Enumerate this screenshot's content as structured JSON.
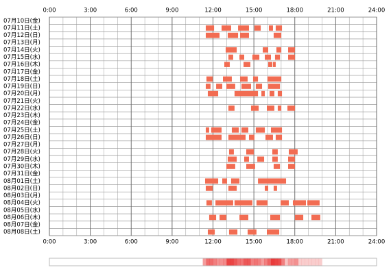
{
  "chart_data": {
    "type": "timeline",
    "categories": [
      "07月10日(金)",
      "07月11日(土)",
      "07月12日(日)",
      "07月13日(月)",
      "07月14日(火)",
      "07月15日(水)",
      "07月16日(木)",
      "07月17日(金)",
      "07月18日(土)",
      "07月19日(日)",
      "07月20日(月)",
      "07月21日(火)",
      "07月22日(水)",
      "07月23日(木)",
      "07月24日(金)",
      "07月25日(土)",
      "07月26日(日)",
      "07月27日(月)",
      "07月28日(火)",
      "07月29日(水)",
      "07月30日(木)",
      "07月31日(金)",
      "08月01日(土)",
      "08月02日(日)",
      "08月03日(月)",
      "08月04日(火)",
      "08月05日(水)",
      "08月06日(木)",
      "08月07日(金)",
      "08月08日(土)"
    ],
    "xlim": [
      0,
      24
    ],
    "xticks": [
      {
        "value": 0,
        "label": "0:00"
      },
      {
        "value": 3,
        "label": "3:00"
      },
      {
        "value": 6,
        "label": "6:00"
      },
      {
        "value": 9,
        "label": "9:00"
      },
      {
        "value": 12,
        "label": "12:00"
      },
      {
        "value": 15,
        "label": "15:00"
      },
      {
        "value": 18,
        "label": "18:00"
      },
      {
        "value": 21,
        "label": "21:00"
      },
      {
        "value": 24,
        "label": "24:00"
      }
    ],
    "color": "#f26c52",
    "values": [
      [],
      [
        [
          11.47,
          12.08
        ],
        [
          12.63,
          13.33
        ],
        [
          13.84,
          14.64
        ],
        [
          15.04,
          15.5
        ],
        [
          16.1,
          16.4
        ],
        [
          16.6,
          17.06
        ]
      ],
      [
        [
          11.47,
          12.48
        ],
        [
          13.08,
          13.84
        ],
        [
          13.99,
          14.64
        ],
        [
          16.45,
          17.01
        ]
      ],
      [],
      [
        [
          12.93,
          13.74
        ],
        [
          15.65,
          16.05
        ],
        [
          16.65,
          17.01
        ],
        [
          17.51,
          18.01
        ]
      ],
      [
        [
          13.13,
          13.48
        ],
        [
          13.94,
          14.29
        ],
        [
          14.89,
          15.4
        ],
        [
          15.8,
          16.25
        ],
        [
          16.55,
          16.91
        ],
        [
          17.51,
          18.01
        ]
      ],
      [
        [
          12.83,
          13.23
        ],
        [
          14.24,
          14.74
        ],
        [
          16.05,
          16.35
        ],
        [
          16.4,
          16.6
        ]
      ],
      [],
      [
        [
          11.52,
          11.97
        ],
        [
          12.73,
          13.38
        ],
        [
          13.99,
          14.54
        ],
        [
          14.94,
          15.3
        ],
        [
          16.0,
          17.01
        ]
      ],
      [
        [
          11.47,
          11.82
        ],
        [
          12.23,
          12.68
        ],
        [
          12.98,
          13.63
        ],
        [
          14.09,
          14.79
        ],
        [
          15.14,
          15.6
        ],
        [
          16.05,
          16.91
        ]
      ],
      [
        [
          11.62,
          12.38
        ],
        [
          13.58,
          15.3
        ],
        [
          15.55,
          15.8
        ],
        [
          16.15,
          16.5
        ],
        [
          16.75,
          17.06
        ]
      ],
      [],
      [
        [
          13.13,
          13.58
        ],
        [
          14.79,
          15.35
        ],
        [
          15.95,
          16.5
        ],
        [
          16.75,
          17.01
        ],
        [
          17.46,
          18.01
        ]
      ],
      [],
      [],
      [
        [
          11.47,
          11.72
        ],
        [
          11.87,
          12.63
        ],
        [
          13.38,
          13.89
        ],
        [
          14.09,
          14.59
        ],
        [
          15.14,
          15.8
        ],
        [
          16.25,
          17.06
        ]
      ],
      [
        [
          11.47,
          12.63
        ],
        [
          13.13,
          14.39
        ],
        [
          14.64,
          15.04
        ],
        [
          15.85,
          16.4
        ],
        [
          16.6,
          17.06
        ]
      ],
      [],
      [
        [
          13.18,
          13.53
        ],
        [
          14.44,
          14.99
        ],
        [
          16.35,
          16.75
        ],
        [
          17.56,
          18.21
        ]
      ],
      [
        [
          13.08,
          13.74
        ],
        [
          14.29,
          14.64
        ],
        [
          15.25,
          15.75
        ],
        [
          16.35,
          16.75
        ],
        [
          17.51,
          18.01
        ]
      ],
      [
        [
          12.98,
          13.63
        ],
        [
          14.44,
          15.09
        ],
        [
          16.45,
          16.91
        ],
        [
          17.51,
          18.01
        ]
      ],
      [],
      [
        [
          11.42,
          12.38
        ],
        [
          12.68,
          13.03
        ],
        [
          13.33,
          13.94
        ],
        [
          15.3,
          17.36
        ]
      ],
      [
        [
          11.47,
          11.97
        ],
        [
          13.13,
          13.74
        ],
        [
          15.8,
          16.05
        ],
        [
          16.45,
          16.7
        ]
      ],
      [],
      [
        [
          11.52,
          11.92
        ],
        [
          12.18,
          13.48
        ],
        [
          13.58,
          14.89
        ],
        [
          15.19,
          16.0
        ],
        [
          16.96,
          17.56
        ],
        [
          17.86,
          18.82
        ],
        [
          18.92,
          19.82
        ]
      ],
      [],
      [
        [
          11.72,
          12.23
        ],
        [
          12.48,
          12.98
        ],
        [
          13.94,
          14.59
        ],
        [
          16.2,
          16.91
        ],
        [
          18.01,
          18.62
        ],
        [
          19.22,
          19.87
        ]
      ],
      [],
      [
        [
          11.62,
          12.13
        ],
        [
          13.18,
          13.79
        ],
        [
          14.54,
          15.19
        ],
        [
          15.95,
          16.86
        ]
      ]
    ]
  }
}
